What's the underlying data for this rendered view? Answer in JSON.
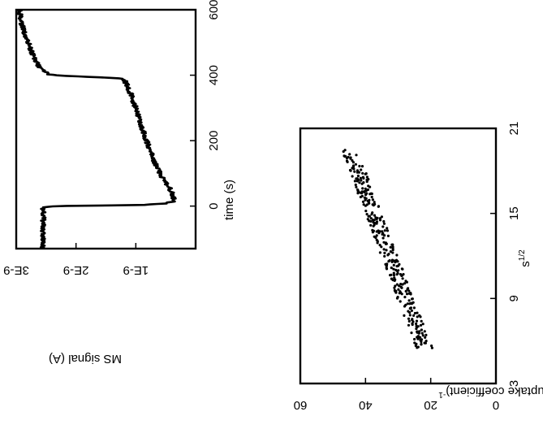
{
  "figure": {
    "orientation": "rotated 90 degrees clockwise (page printed sideways)"
  },
  "chart_data": [
    {
      "type": "line",
      "xlabel": "time (s)",
      "ylabel": "MS signal (A)",
      "xlim": [
        -130,
        600
      ],
      "ylim": [
        0,
        3e-09
      ],
      "x_ticks": [
        0,
        200,
        400,
        600
      ],
      "x_tick_labels": [
        "0",
        "200",
        "400",
        "600"
      ],
      "y_ticks": [
        1e-09,
        2e-09,
        3e-09
      ],
      "y_tick_labels": [
        "1E-9",
        "2E-9",
        "3E-9"
      ],
      "grid": false,
      "series": [
        {
          "x": [
            -130,
            -100,
            -60,
            -20,
            -5,
            0,
            3,
            8,
            15,
            50,
            100,
            150,
            200,
            250,
            300,
            350,
            390,
            395,
            398,
            402,
            420,
            450,
            500,
            550,
            600
          ],
          "y": [
            2.55e-09,
            2.55e-09,
            2.55e-09,
            2.55e-09,
            2.55e-09,
            2.4e-09,
            9e-10,
            5e-10,
            3.5e-10,
            4.2e-10,
            6e-10,
            7.2e-10,
            8.2e-10,
            9.2e-10,
            1e-09,
            1.1e-09,
            1.2e-09,
            1.8e-09,
            2.2e-09,
            2.45e-09,
            2.6e-09,
            2.7e-09,
            2.8e-09,
            2.9e-09,
            2.95e-09
          ],
          "noise": 4e-11
        }
      ]
    },
    {
      "type": "scatter",
      "xlabel": "s",
      "xlabel_superscript": "1/2",
      "ylabel": "(uptake coefficient)",
      "ylabel_superscript": "-1",
      "xlim": [
        3,
        21
      ],
      "ylim": [
        0,
        60
      ],
      "x_ticks": [
        3,
        9,
        15,
        21
      ],
      "x_tick_labels": [
        "3",
        "9",
        "15",
        "21"
      ],
      "y_ticks": [
        0,
        20,
        40,
        60
      ],
      "y_tick_labels": [
        "0",
        "20",
        "40",
        "60"
      ],
      "grid": false,
      "series": [
        {
          "x_range": [
            5.5,
            19.5
          ],
          "fit_start": [
            5.5,
            22
          ],
          "fit_end": [
            19.5,
            45
          ],
          "spread": 2.5,
          "point_count": 320
        }
      ]
    }
  ]
}
